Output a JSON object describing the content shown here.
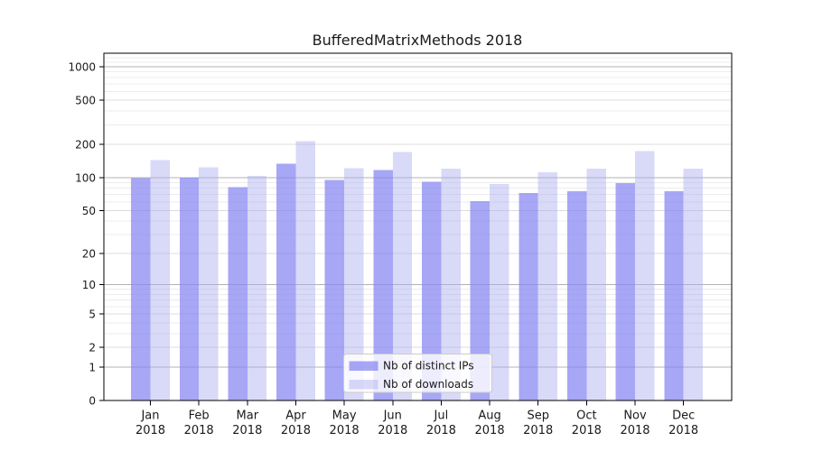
{
  "chart_data": {
    "type": "bar",
    "title": "BufferedMatrixMethods 2018",
    "categories": [
      "Jan",
      "Feb",
      "Mar",
      "Apr",
      "May",
      "Jun",
      "Jul",
      "Aug",
      "Sep",
      "Oct",
      "Nov",
      "Dec"
    ],
    "year_label": "2018",
    "series": [
      {
        "name": "Nb of distinct IPs",
        "color": "#8585f2",
        "opacity": 0.72,
        "values": [
          99,
          100,
          82,
          134,
          95,
          117,
          92,
          61,
          72,
          75,
          89,
          75
        ]
      },
      {
        "name": "Nb of downloads",
        "color": "#aaaaf0",
        "opacity": 0.45,
        "values": [
          144,
          124,
          104,
          213,
          122,
          170,
          120,
          87,
          112,
          120,
          174,
          120
        ]
      }
    ],
    "y_axis": {
      "scale": "log1p",
      "ticks": [
        0,
        1,
        2,
        5,
        10,
        20,
        50,
        100,
        200,
        500,
        1000
      ],
      "minor_gridlines": [
        3,
        4,
        6,
        7,
        8,
        9,
        30,
        40,
        60,
        70,
        80,
        90,
        300,
        400,
        600,
        700,
        800,
        900,
        1100,
        1200
      ],
      "max_value": 1300
    },
    "grid": true,
    "legend": {
      "position": "bottom-center",
      "entries": [
        "Nb of distinct IPs",
        "Nb of downloads"
      ]
    },
    "colors": {
      "decade_gridline": "#b3b3b3",
      "labeled_gridline": "#dcdcdc",
      "minor_gridline": "#ececec",
      "axis": "#000000",
      "legend_border": "#cccccc",
      "legend_bg": "#ffffff"
    }
  }
}
